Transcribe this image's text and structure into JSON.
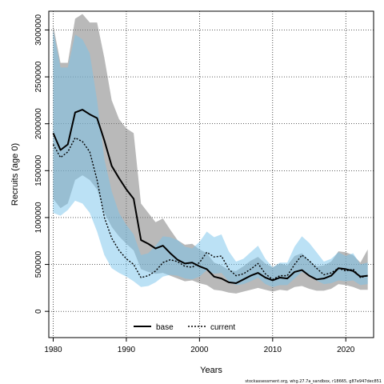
{
  "chart_data": {
    "type": "line",
    "xlabel": "Years",
    "ylabel": "Recruits (age 0)",
    "xlim": [
      1979.4,
      2023.8
    ],
    "ylim": [
      -280000,
      3200000
    ],
    "x_ticks": [
      1980,
      1990,
      2000,
      2010,
      2020
    ],
    "y_ticks": [
      0,
      500000,
      1000000,
      1500000,
      2000000,
      2500000,
      3000000
    ],
    "grid": true,
    "legend_position": "bottom-center",
    "footnote": "stockassessment.org, whg.27.7a_sandbox, r18665, g87e947dec851",
    "x": [
      1980,
      1981,
      1982,
      1983,
      1984,
      1985,
      1986,
      1987,
      1988,
      1989,
      1990,
      1991,
      1992,
      1993,
      1994,
      1995,
      1996,
      1997,
      1998,
      1999,
      2000,
      2001,
      2002,
      2003,
      2004,
      2005,
      2006,
      2007,
      2008,
      2009,
      2010,
      2011,
      2012,
      2013,
      2014,
      2015,
      2016,
      2017,
      2018,
      2019,
      2020,
      2021,
      2022,
      2023
    ],
    "series": [
      {
        "name": "base",
        "color": "#000000",
        "band_color": "rgba(128,128,128,0.55)",
        "line_style": "solid",
        "values": [
          1900000,
          1720000,
          1780000,
          2120000,
          2150000,
          2100000,
          2060000,
          1820000,
          1550000,
          1420000,
          1300000,
          1200000,
          760000,
          720000,
          670000,
          700000,
          620000,
          550000,
          510000,
          520000,
          480000,
          450000,
          370000,
          350000,
          310000,
          300000,
          340000,
          380000,
          410000,
          360000,
          330000,
          360000,
          350000,
          420000,
          440000,
          380000,
          340000,
          350000,
          380000,
          460000,
          450000,
          430000,
          370000,
          380000
        ],
        "lower": [
          1200000,
          1100000,
          1150000,
          1400000,
          1450000,
          1400000,
          1300000,
          1050000,
          900000,
          800000,
          720000,
          650000,
          450000,
          420000,
          400000,
          410000,
          380000,
          350000,
          320000,
          330000,
          300000,
          280000,
          230000,
          220000,
          200000,
          190000,
          210000,
          230000,
          250000,
          230000,
          210000,
          230000,
          220000,
          260000,
          270000,
          240000,
          220000,
          220000,
          240000,
          290000,
          280000,
          260000,
          230000,
          230000
        ],
        "upper": [
          3050000,
          2650000,
          2650000,
          3120000,
          3170000,
          3080000,
          3080000,
          2700000,
          2250000,
          2050000,
          1950000,
          1900000,
          1150000,
          1050000,
          950000,
          990000,
          870000,
          760000,
          710000,
          720000,
          660000,
          620000,
          520000,
          490000,
          440000,
          430000,
          480000,
          540000,
          580000,
          510000,
          470000,
          510000,
          490000,
          590000,
          620000,
          540000,
          480000,
          490000,
          530000,
          640000,
          630000,
          600000,
          520000,
          660000
        ]
      },
      {
        "name": "current",
        "color": "#000000",
        "band_color": "rgba(120,195,235,0.5)",
        "line_style": "dashed",
        "values": [
          1780000,
          1640000,
          1700000,
          1850000,
          1810000,
          1700000,
          1400000,
          1000000,
          780000,
          650000,
          560000,
          500000,
          360000,
          380000,
          430000,
          520000,
          550000,
          530000,
          480000,
          470000,
          520000,
          630000,
          580000,
          590000,
          450000,
          380000,
          400000,
          450000,
          510000,
          400000,
          340000,
          380000,
          380000,
          500000,
          600000,
          540000,
          460000,
          390000,
          410000,
          460000,
          430000,
          450000,
          360000,
          380000
        ],
        "lower": [
          1050000,
          1020000,
          1080000,
          1180000,
          1150000,
          1050000,
          850000,
          600000,
          460000,
          410000,
          370000,
          320000,
          260000,
          270000,
          310000,
          370000,
          390000,
          380000,
          350000,
          340000,
          370000,
          440000,
          400000,
          410000,
          320000,
          280000,
          290000,
          320000,
          360000,
          290000,
          260000,
          280000,
          280000,
          350000,
          420000,
          380000,
          330000,
          290000,
          300000,
          330000,
          320000,
          330000,
          280000,
          290000
        ],
        "upper": [
          3000000,
          2600000,
          2600000,
          2950000,
          2900000,
          2750000,
          2250000,
          1620000,
          1280000,
          1050000,
          920000,
          820000,
          600000,
          620000,
          700000,
          800000,
          790000,
          760000,
          690000,
          670000,
          740000,
          850000,
          790000,
          820000,
          640000,
          530000,
          560000,
          630000,
          700000,
          560000,
          470000,
          520000,
          520000,
          690000,
          800000,
          730000,
          630000,
          530000,
          560000,
          630000,
          590000,
          620000,
          500000,
          520000
        ]
      }
    ]
  }
}
